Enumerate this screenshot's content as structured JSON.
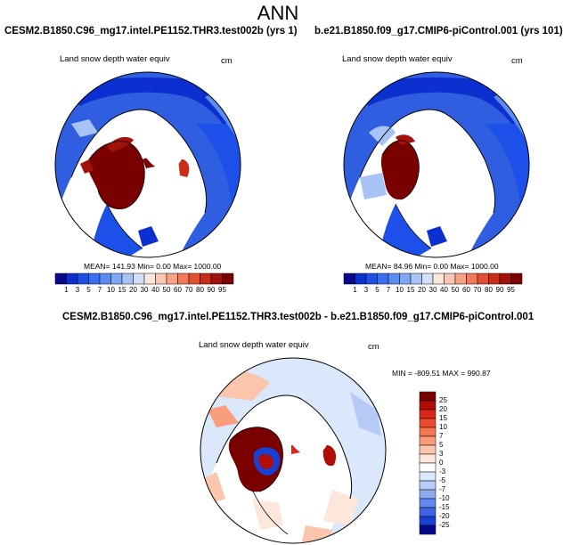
{
  "page": {
    "title": "ANN"
  },
  "panels": [
    {
      "id": "left",
      "title": "CESM2.B1850.C96_mg17.intel.PE1152.THR3.test002b (yrs 1)",
      "variable": "Land snow depth water equiv",
      "units": "cm",
      "stats": "MEAN= 141.93  Min=   0.00  Max= 1000.00"
    },
    {
      "id": "right",
      "title": "b.e21.B1850.f09_g17.CMIP6-piControl.001 (yrs 101)",
      "variable": "Land snow depth water equiv",
      "units": "cm",
      "stats": "MEAN=  84.96  Min=   0.00  Max= 1000.00"
    },
    {
      "id": "diff",
      "title": "CESM2.B1850.C96_mg17.intel.PE1152.THR3.test002b - b.e21.B1850.f09_g17.CMIP6-piControl.001",
      "variable": "Land snow depth water equiv",
      "units": "cm",
      "stats": "MIN = -809.51 MAX = 990.87"
    }
  ],
  "chart_data": [
    {
      "type": "heatmap",
      "projection": "north-polar-stereographic",
      "title": "CESM2.B1850.C96_mg17.intel.PE1152.THR3.test002b (yrs 1)",
      "variable": "Land snow depth water equiv",
      "units": "cm",
      "mean": 141.93,
      "min": 0.0,
      "max": 1000.0,
      "colorbar": {
        "orientation": "horizontal",
        "levels": [
          1,
          3,
          5,
          7,
          10,
          15,
          20,
          30,
          40,
          50,
          60,
          70,
          80,
          90,
          95
        ],
        "colors": [
          "#08088c",
          "#0c2fd0",
          "#1c50e8",
          "#3a6ef0",
          "#5a8cf2",
          "#7ea8f4",
          "#a8c4f7",
          "#d2e0fa",
          "#fbe7de",
          "#fac8b2",
          "#f7a284",
          "#f27a5a",
          "#e4502f",
          "#c92c17",
          "#a3110b",
          "#7a0000"
        ]
      }
    },
    {
      "type": "heatmap",
      "projection": "north-polar-stereographic",
      "title": "b.e21.B1850.f09_g17.CMIP6-piControl.001 (yrs 101)",
      "variable": "Land snow depth water equiv",
      "units": "cm",
      "mean": 84.96,
      "min": 0.0,
      "max": 1000.0,
      "colorbar": {
        "orientation": "horizontal",
        "levels": [
          1,
          3,
          5,
          7,
          10,
          15,
          20,
          30,
          40,
          50,
          60,
          70,
          80,
          90,
          95
        ],
        "colors": [
          "#08088c",
          "#0c2fd0",
          "#1c50e8",
          "#3a6ef0",
          "#5a8cf2",
          "#7ea8f4",
          "#a8c4f7",
          "#d2e0fa",
          "#fbe7de",
          "#fac8b2",
          "#f7a284",
          "#f27a5a",
          "#e4502f",
          "#c92c17",
          "#a3110b",
          "#7a0000"
        ]
      }
    },
    {
      "type": "heatmap",
      "projection": "north-polar-stereographic",
      "title": "CESM2.B1850.C96_mg17.intel.PE1152.THR3.test002b - b.e21.B1850.f09_g17.CMIP6-piControl.001",
      "variable": "Land snow depth water equiv",
      "units": "cm",
      "min": -809.51,
      "max": 990.87,
      "colorbar": {
        "orientation": "vertical",
        "levels": [
          25,
          20,
          15,
          10,
          7,
          5,
          3,
          0,
          -3,
          -5,
          -7,
          -10,
          -15,
          -20,
          -25
        ],
        "colors": [
          "#7a0000",
          "#b00c08",
          "#d8261a",
          "#ec4a2c",
          "#f5744e",
          "#f89e7c",
          "#fbc6ac",
          "#fde6da",
          "#ffffff",
          "#dbe7fb",
          "#b5cbf6",
          "#8caaf2",
          "#6388ee",
          "#3a63e6",
          "#1a3fd4",
          "#07088c"
        ]
      }
    }
  ]
}
